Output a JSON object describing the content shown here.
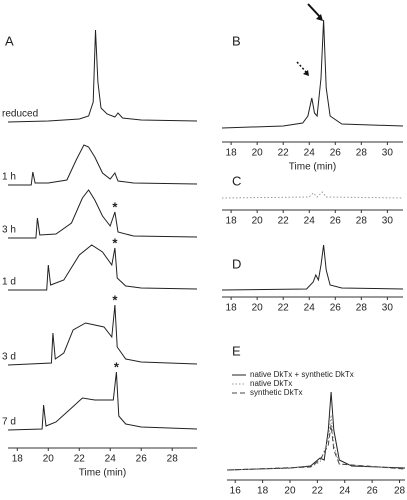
{
  "chart_data": [
    {
      "type": "line",
      "title": "A",
      "xlabel": "Time (min)",
      "xlim": [
        17.4,
        29.6
      ],
      "xticks": [
        18,
        20,
        22,
        24,
        26,
        28
      ],
      "series": [
        {
          "name": "reduced",
          "color": "#222",
          "dash": "solid",
          "x": [
            17.4,
            20,
            22,
            22.6,
            22.9,
            23.05,
            23.2,
            23.4,
            23.8,
            24.3,
            24.5,
            24.8,
            26,
            29.6
          ],
          "values": [
            0,
            1,
            3,
            6,
            20,
            92,
            40,
            14,
            8,
            5,
            9,
            4,
            2,
            1
          ]
        },
        {
          "name": "1 h",
          "color": "#222",
          "dash": "solid",
          "x": [
            17.4,
            18.9,
            19.0,
            19.15,
            20,
            21.2,
            21.8,
            22.3,
            22.6,
            23,
            23.5,
            24,
            24.3,
            24.5,
            25.5,
            29.6
          ],
          "values": [
            0,
            0,
            13,
            2,
            2,
            5,
            25,
            40,
            38,
            28,
            12,
            6,
            12,
            4,
            2,
            1
          ]
        },
        {
          "name": "3 h",
          "color": "#222",
          "dash": "solid",
          "x": [
            17.4,
            19.2,
            19.3,
            19.45,
            20.5,
            21.5,
            22.2,
            22.6,
            23,
            23.5,
            24,
            24.3,
            24.5,
            25.5,
            29.6
          ],
          "values": [
            0,
            0,
            20,
            3,
            4,
            15,
            40,
            48,
            38,
            22,
            12,
            26,
            6,
            2,
            1
          ],
          "annotation": {
            "text": "*",
            "x": 24.3
          }
        },
        {
          "name": "1 d",
          "color": "#222",
          "dash": "solid",
          "x": [
            17.4,
            19.9,
            20.0,
            20.15,
            21,
            22,
            22.8,
            23.5,
            24.1,
            24.3,
            24.45,
            25,
            26,
            29.6
          ],
          "values": [
            0,
            0,
            25,
            5,
            10,
            35,
            45,
            38,
            25,
            42,
            12,
            4,
            2,
            1
          ],
          "annotation": {
            "text": "*",
            "x": 24.3
          }
        },
        {
          "name": "3 d",
          "color": "#222",
          "dash": "solid",
          "x": [
            17.4,
            20.2,
            20.3,
            20.45,
            21,
            21.6,
            22.4,
            23,
            23.6,
            24.1,
            24.3,
            24.45,
            25,
            26,
            29.6
          ],
          "values": [
            0,
            2,
            32,
            6,
            12,
            35,
            42,
            40,
            38,
            28,
            60,
            18,
            6,
            3,
            1
          ],
          "annotation": {
            "text": "*",
            "x": 24.3
          }
        },
        {
          "name": "7 d",
          "color": "#222",
          "dash": "solid",
          "x": [
            17.4,
            19.6,
            19.7,
            19.85,
            20.5,
            21.5,
            22.2,
            23,
            23.8,
            24.2,
            24.4,
            24.55,
            25,
            26,
            29.6
          ],
          "values": [
            0,
            1,
            25,
            4,
            8,
            22,
            32,
            30,
            30,
            30,
            58,
            14,
            6,
            3,
            1
          ],
          "annotation": {
            "text": "*",
            "x": 24.4
          }
        }
      ]
    },
    {
      "type": "line",
      "title": "B",
      "xlabel": "Time (min)",
      "xlim": [
        17.3,
        31.2
      ],
      "xticks": [
        18,
        20,
        22,
        24,
        26,
        28,
        30
      ],
      "series": [
        {
          "color": "#222",
          "dash": "solid",
          "x": [
            17.3,
            22,
            23.5,
            23.9,
            24.2,
            24.4,
            24.6,
            24.9,
            25.1,
            25.3,
            25.6,
            26.5,
            31.2
          ],
          "values": [
            0,
            2,
            5,
            12,
            30,
            15,
            12,
            50,
            108,
            40,
            12,
            4,
            2
          ]
        }
      ]
    },
    {
      "type": "line",
      "title": "C",
      "xlim": [
        17.3,
        31.2
      ],
      "xticks": [
        18,
        20,
        22,
        24,
        26,
        28,
        30
      ],
      "series": [
        {
          "color": "#999",
          "dash": "dotted",
          "x": [
            17.3,
            24,
            24.3,
            24.6,
            25,
            25.3,
            31.2
          ],
          "values": [
            0,
            1,
            5,
            1,
            6,
            1,
            0
          ]
        }
      ]
    },
    {
      "type": "line",
      "title": "D",
      "xlim": [
        17.3,
        31.2
      ],
      "xticks": [
        18,
        20,
        22,
        24,
        26,
        28,
        30
      ],
      "series": [
        {
          "color": "#222",
          "dash": "solid",
          "x": [
            17.3,
            23.8,
            24.3,
            24.5,
            24.7,
            24.9,
            25.1,
            25.3,
            25.6,
            26.5,
            31.2
          ],
          "values": [
            0,
            1,
            8,
            15,
            10,
            25,
            45,
            20,
            5,
            2,
            1
          ]
        }
      ]
    },
    {
      "type": "line",
      "title": "E",
      "xlabel": "Time (min)",
      "xlim": [
        15.4,
        28.4
      ],
      "xticks": [
        16,
        18,
        20,
        22,
        24,
        26,
        28
      ],
      "series": [
        {
          "name": "native DkTx + synthetic DkTx",
          "color": "#222",
          "dash": "solid",
          "x": [
            15.4,
            20,
            21.5,
            22.2,
            22.5,
            22.8,
            23,
            23.2,
            23.6,
            24.5,
            28.4
          ],
          "values": [
            0,
            2,
            4,
            12,
            10,
            40,
            78,
            40,
            10,
            4,
            2
          ]
        },
        {
          "name": "native DkTx",
          "color": "#999",
          "dash": "dotted",
          "x": [
            15.4,
            21.5,
            22.2,
            22.8,
            23,
            23.2,
            23.6,
            28.4
          ],
          "values": [
            0,
            3,
            8,
            30,
            55,
            25,
            6,
            1
          ]
        },
        {
          "name": "synthetic DkTx",
          "color": "#444",
          "dash": "dashed",
          "x": [
            15.4,
            21.5,
            22.2,
            22.8,
            23,
            23.2,
            23.6,
            28.4
          ],
          "values": [
            0,
            3,
            10,
            25,
            45,
            20,
            6,
            1
          ]
        }
      ]
    }
  ]
}
